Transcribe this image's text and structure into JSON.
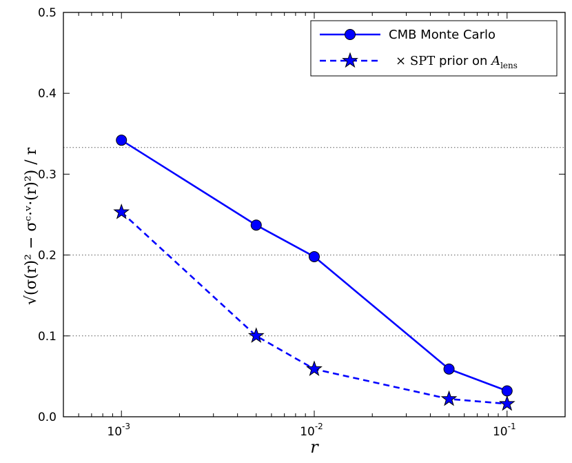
{
  "chart_data": {
    "type": "line",
    "x_scale": "log",
    "xlim": [
      0.0005,
      0.2
    ],
    "ylim": [
      0.0,
      0.5
    ],
    "xticks": [
      {
        "value": 0.001,
        "base": "10",
        "exp": "-3"
      },
      {
        "value": 0.01,
        "base": "10",
        "exp": "-2"
      },
      {
        "value": 0.1,
        "base": "10",
        "exp": "-1"
      }
    ],
    "yticks": [
      0.0,
      0.1,
      0.2,
      0.3,
      0.4,
      0.5
    ],
    "ytick_labels": [
      "0.0",
      "0.1",
      "0.2",
      "0.3",
      "0.4",
      "0.5"
    ],
    "xlabel": "r",
    "ylabel": "√(σ(r)² − σᶜ·ᵛ·(r)²) / r",
    "hlines": [
      0.1,
      0.2,
      0.333
    ],
    "grid": "horizontal dotted lines at 0.1, 0.2, 0.333",
    "legend_position": "top-right",
    "series": [
      {
        "name": "CMB Monte Carlo",
        "color": "#0000ff",
        "linestyle": "solid",
        "marker": "circle",
        "x": [
          0.001,
          0.005,
          0.01,
          0.05,
          0.1
        ],
        "y": [
          0.342,
          0.237,
          0.198,
          0.059,
          0.032
        ]
      },
      {
        "name": "× SPT prior on A_lens",
        "legend_parts": {
          "prefix": "× ",
          "spt": "SPT",
          "middle": " prior on ",
          "symbol": "A",
          "subscript": "lens"
        },
        "color": "#0000ff",
        "linestyle": "dashed",
        "marker": "star",
        "x": [
          0.001,
          0.005,
          0.01,
          0.05,
          0.1
        ],
        "y": [
          0.253,
          0.1,
          0.059,
          0.022,
          0.016
        ]
      }
    ]
  }
}
